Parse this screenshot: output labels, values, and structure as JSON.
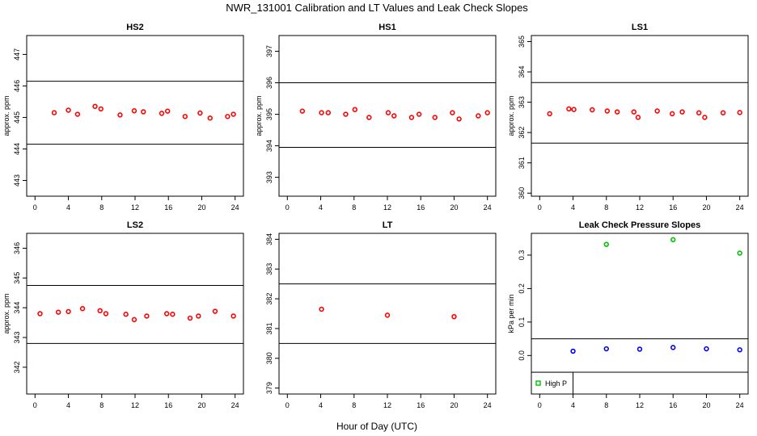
{
  "title": "NWR_131001  Calibration and LT Values and Leak Check Slopes",
  "xlabel": "Hour of Day (UTC)",
  "colors": {
    "cal": "#ff0000",
    "hp": "#00c000",
    "lp": "#0000ff",
    "line": "#000000"
  },
  "chart_data": [
    {
      "type": "scatter",
      "title": "HS2",
      "ylabel": "approx. ppm",
      "xlim": [
        -1,
        25
      ],
      "ylim": [
        442.5,
        447.6
      ],
      "xticks": [
        0,
        4,
        8,
        12,
        16,
        20,
        24
      ],
      "xtick_labels": [
        "0",
        "4",
        "8",
        "12",
        "16",
        "20",
        "24"
      ],
      "yticks": [
        443,
        444,
        445,
        446,
        447
      ],
      "ytick_labels": [
        "443",
        "444",
        "445",
        "446",
        "447"
      ],
      "hlines": [
        446.15,
        444.15
      ],
      "series": [
        {
          "points": [
            [
              2.3,
              445.15
            ],
            [
              4,
              445.23
            ],
            [
              5.1,
              445.1
            ],
            [
              7.2,
              445.35
            ],
            [
              7.9,
              445.27
            ],
            [
              10.2,
              445.08
            ],
            [
              11.9,
              445.21
            ],
            [
              13,
              445.18
            ],
            [
              15.2,
              445.13
            ],
            [
              15.9,
              445.2
            ],
            [
              18,
              445.03
            ],
            [
              19.8,
              445.14
            ],
            [
              21,
              444.98
            ],
            [
              23.1,
              445.03
            ],
            [
              23.8,
              445.1
            ]
          ]
        }
      ]
    },
    {
      "type": "scatter",
      "title": "HS1",
      "ylabel": "approx. ppm",
      "xlim": [
        -1,
        25
      ],
      "ylim": [
        392.4,
        397.5
      ],
      "xticks": [
        0,
        4,
        8,
        12,
        16,
        20,
        24
      ],
      "xtick_labels": [
        "0",
        "4",
        "8",
        "12",
        "16",
        "20",
        "24"
      ],
      "yticks": [
        393,
        394,
        395,
        396,
        397
      ],
      "ytick_labels": [
        "393",
        "394",
        "395",
        "396",
        "397"
      ],
      "hlines": [
        396.0,
        393.95
      ],
      "series": [
        {
          "points": [
            [
              1.8,
              395.1
            ],
            [
              4.1,
              395.05
            ],
            [
              4.9,
              395.05
            ],
            [
              7,
              395.0
            ],
            [
              8.1,
              395.15
            ],
            [
              9.8,
              394.9
            ],
            [
              12.1,
              395.05
            ],
            [
              12.8,
              394.95
            ],
            [
              14.9,
              394.9
            ],
            [
              15.8,
              395.0
            ],
            [
              17.7,
              394.9
            ],
            [
              19.8,
              395.05
            ],
            [
              20.6,
              394.85
            ],
            [
              22.9,
              394.95
            ],
            [
              24,
              395.05
            ]
          ]
        }
      ]
    },
    {
      "type": "scatter",
      "title": "LS1",
      "ylabel": "approx. ppm",
      "xlim": [
        -1,
        25
      ],
      "ylim": [
        359.9,
        365.2
      ],
      "xticks": [
        0,
        4,
        8,
        12,
        16,
        20,
        24
      ],
      "xtick_labels": [
        "0",
        "4",
        "8",
        "12",
        "16",
        "20",
        "24"
      ],
      "yticks": [
        360,
        361,
        362,
        363,
        364,
        365
      ],
      "ytick_labels": [
        "360",
        "361",
        "362",
        "363",
        "364",
        "365"
      ],
      "hlines": [
        363.65,
        361.65
      ],
      "series": [
        {
          "points": [
            [
              1.2,
              362.62
            ],
            [
              3.5,
              362.78
            ],
            [
              4.1,
              362.76
            ],
            [
              6.3,
              362.75
            ],
            [
              8.1,
              362.71
            ],
            [
              9.3,
              362.68
            ],
            [
              11.3,
              362.68
            ],
            [
              11.8,
              362.5
            ],
            [
              14.1,
              362.71
            ],
            [
              15.9,
              362.62
            ],
            [
              17.1,
              362.68
            ],
            [
              19.1,
              362.65
            ],
            [
              19.8,
              362.5
            ],
            [
              22,
              362.65
            ],
            [
              24,
              362.66
            ]
          ]
        }
      ]
    },
    {
      "type": "scatter",
      "title": "LS2",
      "ylabel": "approx. ppm",
      "xlim": [
        -1,
        25
      ],
      "ylim": [
        341.1,
        346.5
      ],
      "xticks": [
        0,
        4,
        8,
        12,
        16,
        20,
        24
      ],
      "xtick_labels": [
        "0",
        "4",
        "8",
        "12",
        "16",
        "20",
        "24"
      ],
      "yticks": [
        342,
        343,
        344,
        345,
        346
      ],
      "ytick_labels": [
        "342",
        "343",
        "344",
        "345",
        "346"
      ],
      "hlines": [
        344.75,
        342.8
      ],
      "series": [
        {
          "points": [
            [
              0.6,
              343.8
            ],
            [
              2.8,
              343.85
            ],
            [
              4,
              343.87
            ],
            [
              5.7,
              343.97
            ],
            [
              7.8,
              343.9
            ],
            [
              8.5,
              343.8
            ],
            [
              10.9,
              343.78
            ],
            [
              11.9,
              343.6
            ],
            [
              13.4,
              343.72
            ],
            [
              15.8,
              343.8
            ],
            [
              16.5,
              343.78
            ],
            [
              18.6,
              343.65
            ],
            [
              19.6,
              343.72
            ],
            [
              21.6,
              343.88
            ],
            [
              23.8,
              343.72
            ]
          ]
        }
      ]
    },
    {
      "type": "scatter",
      "title": "LT",
      "ylabel": "",
      "xlim": [
        -1,
        25
      ],
      "ylim": [
        378.8,
        384.2
      ],
      "xticks": [
        0,
        4,
        8,
        12,
        16,
        20,
        24
      ],
      "xtick_labels": [
        "0",
        "4",
        "8",
        "12",
        "16",
        "20",
        "24"
      ],
      "yticks": [
        379,
        380,
        381,
        382,
        383,
        384
      ],
      "ytick_labels": [
        "379",
        "380",
        "381",
        "382",
        "383",
        "384"
      ],
      "hlines": [
        382.5,
        380.5
      ],
      "series": [
        {
          "points": [
            [
              4.1,
              381.65
            ],
            [
              12,
              381.45
            ],
            [
              20,
              381.4
            ]
          ]
        }
      ]
    },
    {
      "type": "scatter",
      "title": "Leak Check Pressure Slopes",
      "ylabel": "kPa per min",
      "xlim": [
        -1,
        25
      ],
      "ylim": [
        -0.115,
        0.365
      ],
      "xticks": [
        0,
        4,
        8,
        12,
        16,
        20,
        24
      ],
      "xtick_labels": [
        "0",
        "4",
        "8",
        "12",
        "16",
        "20",
        "24"
      ],
      "yticks": [
        0.0,
        0.1,
        0.2,
        0.3
      ],
      "ytick_labels": [
        "0.0",
        "0.1",
        "0.2",
        "0.3"
      ],
      "hlines": [
        0.05,
        -0.05
      ],
      "series": [
        {
          "name": "High P",
          "color": "hp",
          "points": [
            [
              8,
              0.332
            ],
            [
              16,
              0.346
            ],
            [
              24,
              0.306
            ]
          ]
        },
        {
          "color": "lp",
          "points": [
            [
              4,
              0.013
            ],
            [
              8,
              0.02
            ],
            [
              12,
              0.019
            ],
            [
              16,
              0.024
            ],
            [
              20,
              0.02
            ],
            [
              24,
              0.017
            ]
          ]
        }
      ],
      "legend": "bottom-left"
    }
  ]
}
